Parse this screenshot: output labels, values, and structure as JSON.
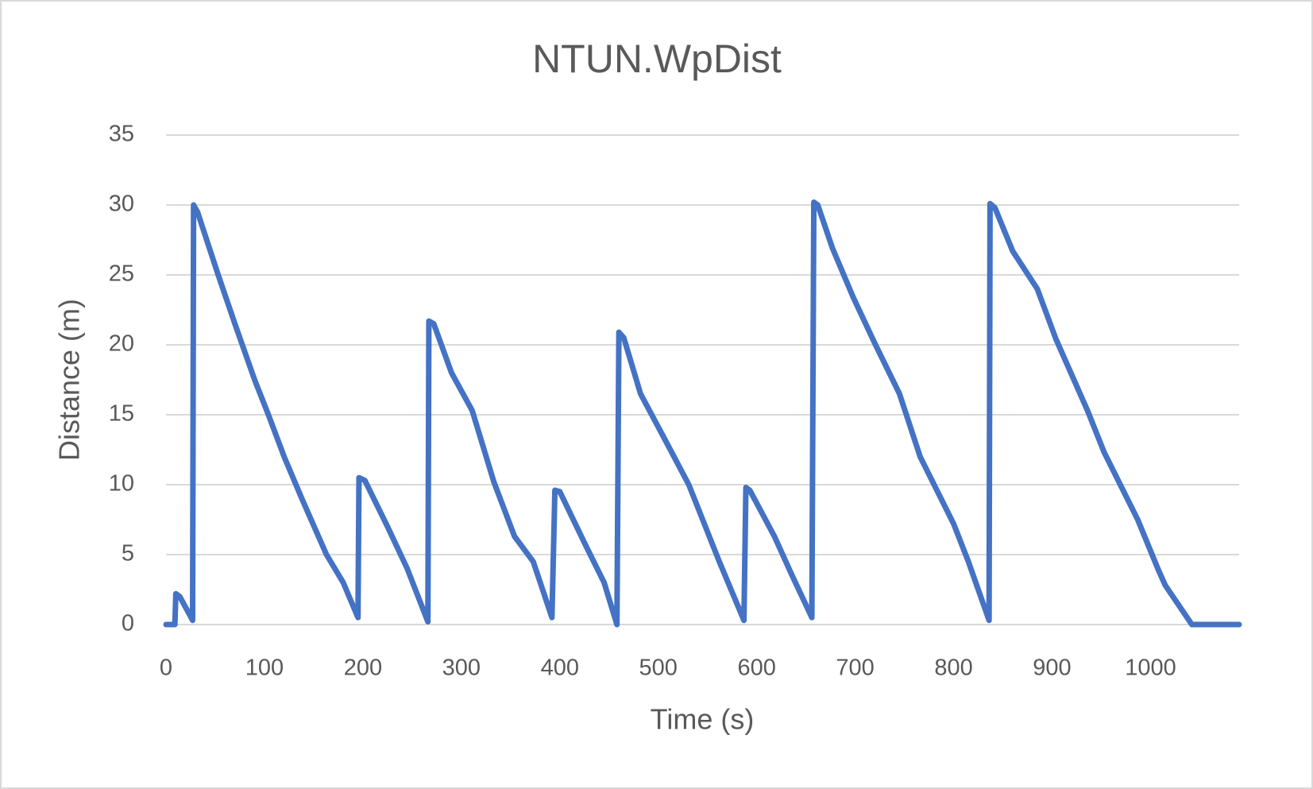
{
  "chart_data": {
    "type": "line",
    "title": "NTUN.WpDist",
    "x_label": "Time (s)",
    "y_label": "Distance (m)",
    "x": [
      0,
      9,
      10,
      14,
      27,
      28,
      32,
      53,
      70,
      90,
      104,
      120,
      138,
      163,
      180,
      195,
      196,
      202,
      225,
      245,
      266,
      267,
      272,
      290,
      311,
      333,
      354,
      373,
      392,
      395,
      400,
      426,
      445,
      458,
      460,
      465,
      482,
      507,
      531,
      562,
      587,
      589,
      593,
      618,
      636,
      656,
      658,
      662,
      677,
      698,
      720,
      745,
      766,
      800,
      815,
      836,
      837,
      842,
      860,
      885,
      904,
      936,
      953,
      987,
      1008,
      1015,
      1042,
      1090
    ],
    "values": [
      0,
      0,
      2.2,
      2,
      0.3,
      30,
      29.5,
      25,
      21.5,
      17.5,
      15,
      12,
      9,
      5,
      3,
      0.5,
      10.5,
      10.3,
      7,
      4,
      0.2,
      21.7,
      21.5,
      18,
      15.3,
      10.2,
      6.3,
      4.5,
      0.5,
      9.6,
      9.5,
      5.7,
      3,
      0,
      20.9,
      20.5,
      16.5,
      13.2,
      10,
      4.5,
      0.3,
      9.8,
      9.6,
      6.3,
      3.5,
      0.5,
      30.2,
      30,
      26.9,
      23.4,
      20.1,
      16.5,
      12,
      7.2,
      4.5,
      0.3,
      30.1,
      29.8,
      26.7,
      24,
      20.4,
      15.3,
      12.3,
      7.5,
      3.9,
      2.8,
      0,
      0
    ],
    "color": "#4472c4",
    "xlim": [
      0,
      1090
    ],
    "xticks": [
      0,
      100,
      200,
      300,
      400,
      500,
      600,
      700,
      800,
      900,
      1000
    ],
    "ylim": [
      0,
      35
    ],
    "yticks": [
      0,
      5,
      10,
      15,
      20,
      25,
      30,
      35
    ],
    "grid": true
  }
}
